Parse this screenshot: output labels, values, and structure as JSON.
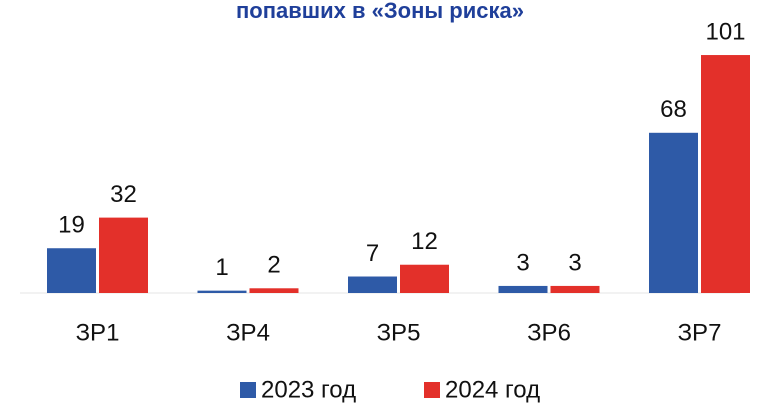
{
  "chart_data": {
    "type": "bar",
    "title": "попавших в «Зоны риска»",
    "categories": [
      "ЗР1",
      "ЗР4",
      "ЗР5",
      "ЗР6",
      "ЗР7"
    ],
    "series": [
      {
        "name": "2023 год",
        "color": "#2e5aa7",
        "values": [
          19,
          1,
          7,
          3,
          68
        ]
      },
      {
        "name": "2024 год",
        "color": "#e3302a",
        "values": [
          32,
          2,
          12,
          3,
          101
        ]
      }
    ]
  }
}
